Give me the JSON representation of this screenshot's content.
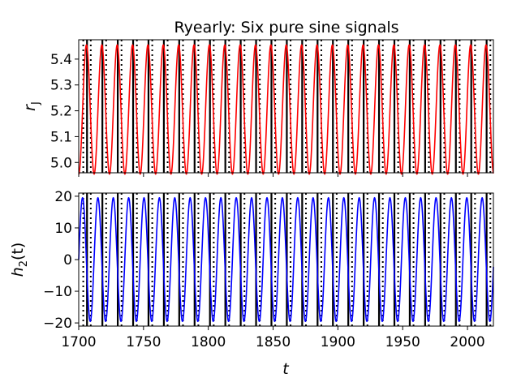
{
  "chart_data": [
    {
      "type": "line",
      "title": "Ryearly: Six pure sine signals",
      "ylabel": "r",
      "ylabel_sub": "J",
      "xlabel": "",
      "xlim": [
        1700,
        2020
      ],
      "ylim": [
        4.96,
        5.475
      ],
      "yticks": [
        5.0,
        5.1,
        5.2,
        5.3,
        5.4
      ],
      "ytick_labels": [
        "5.0",
        "5.1",
        "5.2",
        "5.3",
        "5.4"
      ],
      "xticks": [
        1700,
        1750,
        1800,
        1850,
        1900,
        1950,
        2000
      ],
      "xtick_labels": [],
      "grid": false,
      "series": [
        {
          "color": "#ff0000",
          "signal": {
            "mean": 5.205,
            "amplitude": 0.25,
            "period_years": 11.86,
            "phase_year": 1703.0
          }
        },
        {
          "color": "#000000",
          "signal": {
            "mean": 5.205,
            "amplitude": 0.25,
            "period_years": 11.86,
            "phase_year": 1706.4
          },
          "style": "solid-vertical-markers"
        }
      ],
      "vertical_lines": {
        "period_years": 11.86,
        "start_year": 1706.4,
        "dotted_offset_years": 2.9,
        "color": "#000000"
      }
    },
    {
      "type": "line",
      "title": "",
      "ylabel": "h",
      "ylabel_sub": "2",
      "ylabel_suffix": "(t)",
      "xlabel": "t",
      "xlim": [
        1700,
        2020
      ],
      "ylim": [
        -21,
        21
      ],
      "yticks": [
        -20,
        -10,
        0,
        10,
        20
      ],
      "ytick_labels": [
        "−20",
        "−10",
        "0",
        "10",
        "20"
      ],
      "xticks": [
        1700,
        1750,
        1800,
        1850,
        1900,
        1950,
        2000
      ],
      "xtick_labels": [
        "1700",
        "1750",
        "1800",
        "1850",
        "1900",
        "1950",
        "2000"
      ],
      "grid": false,
      "series": [
        {
          "color": "#0000ff",
          "signal": {
            "mean": 0,
            "amplitude": 19.5,
            "period_years": 11.86,
            "phase_year": 1700.0
          }
        }
      ],
      "vertical_lines": {
        "period_years": 11.86,
        "start_year": 1706.4,
        "dotted_offset_years": 2.9,
        "color": "#000000"
      }
    }
  ]
}
